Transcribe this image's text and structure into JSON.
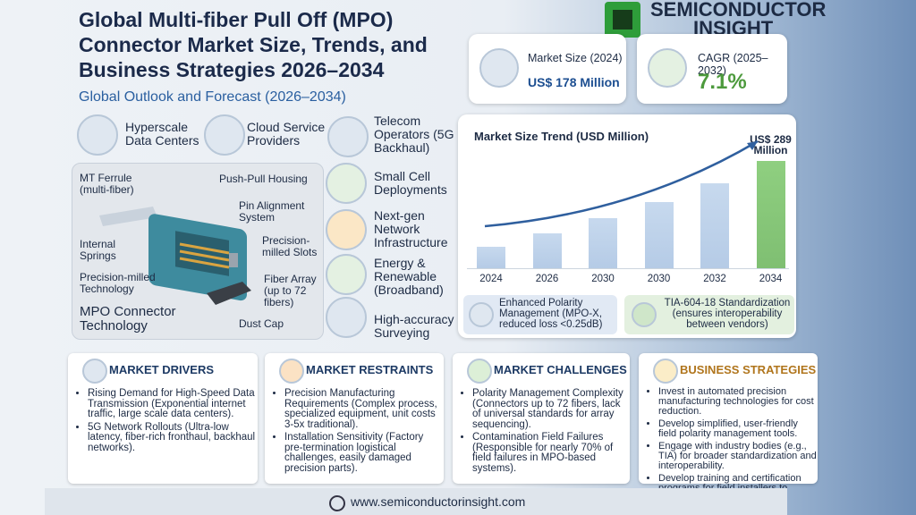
{
  "header": {
    "title": "Global Multi-fiber Pull Off (MPO) Connector Market Size, Trends, and Business Strategies 2026–2034",
    "subtitle": "Global Outlook and Forecast (2026–2034)",
    "brand": [
      "SEMICONDUCTOR",
      "INSIGHT"
    ]
  },
  "stats": [
    {
      "label": "Market Size (2024)",
      "value": "US$ 178 Million"
    },
    {
      "label": "CAGR (2025–2032)",
      "value": "7.1%"
    }
  ],
  "applications": [
    "Hyperscale Data Centers",
    "Cloud Service Providers",
    "Telecom Operators (5G Backhaul)",
    "Small Cell Deployments",
    "Next-gen Network Infrastructure",
    "Energy & Renewable (Broadband)",
    "High-accuracy Surveying"
  ],
  "diagram": {
    "title": "MPO Connector Technology",
    "labels": [
      "MT Ferrule (multi-fiber)",
      "Push-Pull Housing",
      "Pin Alignment System",
      "Precision-milled Slots",
      "Internal Springs",
      "Precision-milled Technology",
      "Fiber Array (up to 72 fibers)",
      "Dust Cap"
    ]
  },
  "chart_data": {
    "type": "bar",
    "title": "Market Size Trend (USD Million)",
    "categories": [
      "2024",
      "2026",
      "2030",
      "2030",
      "2032",
      "2034"
    ],
    "values": [
      178,
      195,
      215,
      235,
      260,
      289
    ],
    "value_labels": [
      null,
      null,
      null,
      null,
      null,
      "US$ 289 Million"
    ],
    "colors": [
      "#b5cbe6",
      "#b5cbe6",
      "#b5cbe6",
      "#b5cbe6",
      "#b5cbe6",
      "#7fbf72"
    ],
    "ylim": [
      150,
      300
    ]
  },
  "features": [
    "Enhanced Polarity Management (MPO-X, reduced loss <0.25dB)",
    "TIA-604-18 Standardization (ensures interoperability between vendors)"
  ],
  "sections": [
    {
      "title": "MARKET DRIVERS",
      "items": [
        "Rising Demand for High-Speed Data Transmission (Exponential internet traffic, large scale data centers).",
        "5G Network Rollouts (Ultra-low latency, fiber-rich fronthaul, backhaul networks)."
      ]
    },
    {
      "title": "MARKET RESTRAINTS",
      "items": [
        "Precision Manufacturing Requirements (Complex process, specialized equipment, unit costs 3-5x traditional).",
        "Installation Sensitivity (Factory pre-termination logistical challenges, easily damaged precision parts)."
      ]
    },
    {
      "title": "MARKET CHALLENGES",
      "items": [
        "Polarity Management Complexity (Connectors up to 72 fibers, lack of universal standards for array sequencing).",
        "Contamination Field Failures (Responsible for nearly 70% of field failures in MPO-based systems)."
      ]
    },
    {
      "title": "BUSINESS STRATEGIES",
      "items": [
        "Invest in automated precision manufacturing technologies for cost reduction.",
        "Develop simplified, user-friendly field polarity management tools.",
        "Engage with industry bodies (e.g., TIA) for broader standardization and interoperability.",
        "Develop training and certification programs for field installers to mitigate installation issues."
      ]
    }
  ],
  "footer": "www.semiconductorinsight.com"
}
